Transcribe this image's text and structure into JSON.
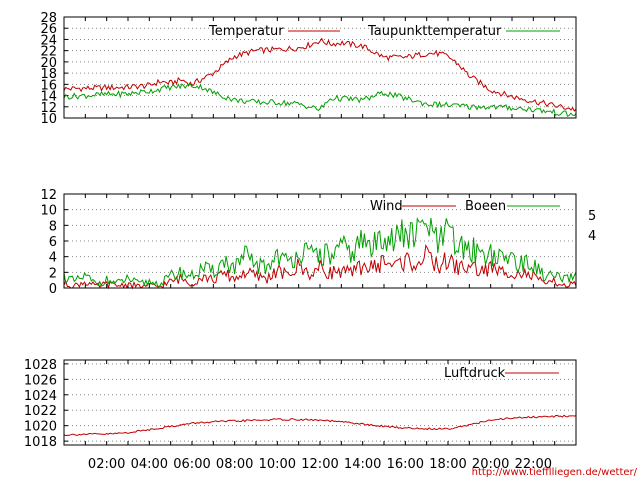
{
  "chart_data": [
    {
      "id": "temperature",
      "type": "line",
      "x_range": [
        0,
        24
      ],
      "ylim": [
        10,
        28
      ],
      "y_ticks": [
        "28",
        "26",
        "24",
        "22",
        "20",
        "18",
        "16",
        "14",
        "12",
        "10"
      ],
      "grid": true,
      "legend_position": "top-right",
      "series": [
        {
          "name": "Temperatur",
          "color": "#c00000",
          "x": [
            0,
            1,
            2,
            3,
            4,
            4.5,
            5,
            5.5,
            6,
            7,
            8,
            9,
            10,
            11,
            11.5,
            12,
            12.5,
            13,
            14,
            15,
            16,
            17,
            17.5,
            18,
            18.5,
            19,
            20,
            21,
            22,
            23,
            24
          ],
          "y": [
            15.2,
            15.3,
            15.4,
            15.5,
            15.8,
            16.5,
            16.2,
            16.8,
            16.0,
            18.0,
            21.0,
            22.0,
            22.2,
            22.5,
            23.0,
            23.8,
            23.2,
            23.4,
            22.8,
            20.8,
            20.8,
            21.5,
            21.5,
            21.0,
            19.5,
            17.5,
            15.0,
            13.8,
            13.0,
            12.2,
            11.5
          ]
        },
        {
          "name": "Taupunkttemperatur",
          "color": "#00a000",
          "x": [
            0,
            1,
            2,
            3,
            4,
            5,
            6,
            6.5,
            7,
            8,
            9,
            10,
            11,
            11.5,
            12,
            12.5,
            13,
            14,
            15,
            16,
            17,
            18,
            19,
            20,
            21,
            22,
            23,
            24
          ],
          "y": [
            13.8,
            14.0,
            14.2,
            14.3,
            14.8,
            15.5,
            15.8,
            15.5,
            14.5,
            13.2,
            12.8,
            12.8,
            12.5,
            12.0,
            11.5,
            13.5,
            13.5,
            13.2,
            14.5,
            13.5,
            12.5,
            12.3,
            12.0,
            12.0,
            11.8,
            11.5,
            11.0,
            10.5
          ]
        }
      ]
    },
    {
      "id": "wind",
      "type": "line",
      "x_range": [
        0,
        24
      ],
      "ylim": [
        0,
        12
      ],
      "y_ticks": [
        "12",
        "10",
        "8",
        "6",
        "4",
        "2",
        "0"
      ],
      "right_labels": [
        "5",
        "4"
      ],
      "grid": true,
      "legend_position": "top-right",
      "series": [
        {
          "name": "Wind",
          "color": "#c00000",
          "x": [
            0,
            0.5,
            1,
            1.5,
            2,
            2.5,
            3,
            3.5,
            4,
            4.5,
            5,
            5.5,
            6,
            6.5,
            7,
            7.5,
            8,
            8.5,
            9,
            9.5,
            10,
            10.5,
            11,
            11.5,
            12,
            12.5,
            13,
            13.5,
            14,
            14.5,
            15,
            15.5,
            16,
            16.5,
            17,
            17.5,
            18,
            18.5,
            19,
            19.5,
            20,
            20.5,
            21,
            21.5,
            22,
            22.5,
            23,
            23.5,
            24
          ],
          "y": [
            0.5,
            0.3,
            0.8,
            0.2,
            0.5,
            0.3,
            0.5,
            0.2,
            0.3,
            0.2,
            0.8,
            1.2,
            0.6,
            1.5,
            1.0,
            1.8,
            1.2,
            2.0,
            1.5,
            1.2,
            2.2,
            1.5,
            2.8,
            1.8,
            2.5,
            2.0,
            2.2,
            1.8,
            3.0,
            2.5,
            3.5,
            2.8,
            3.5,
            3.2,
            4.0,
            2.8,
            3.5,
            2.5,
            2.8,
            2.2,
            2.5,
            2.0,
            2.2,
            1.8,
            1.5,
            0.5,
            0.8,
            0.3,
            0.5
          ]
        },
        {
          "name": "Boeen",
          "color": "#00a000",
          "x": [
            0,
            0.5,
            1,
            1.5,
            2,
            2.5,
            3,
            3.5,
            4,
            4.5,
            5,
            5.5,
            6,
            6.5,
            7,
            7.5,
            8,
            8.5,
            9,
            9.5,
            10,
            10.5,
            11,
            11.5,
            12,
            12.5,
            13,
            13.5,
            14,
            14.5,
            15,
            15.5,
            16,
            16.5,
            17,
            17.5,
            18,
            18.5,
            19,
            19.5,
            20,
            20.5,
            21,
            21.5,
            22,
            22.5,
            23,
            23.5,
            24
          ],
          "y": [
            1.5,
            0.8,
            1.5,
            0.5,
            1.0,
            0.6,
            1.2,
            0.5,
            0.8,
            0.5,
            1.5,
            2.0,
            1.5,
            2.5,
            2.0,
            3.5,
            2.5,
            4.0,
            3.0,
            2.5,
            4.5,
            3.0,
            5.0,
            4.0,
            4.5,
            4.0,
            5.0,
            4.5,
            6.0,
            5.0,
            7.5,
            6.0,
            7.0,
            6.5,
            8.5,
            5.5,
            7.0,
            5.0,
            5.0,
            4.5,
            4.5,
            3.5,
            4.0,
            3.0,
            3.0,
            1.5,
            1.5,
            1.0,
            1.5
          ]
        }
      ]
    },
    {
      "id": "pressure",
      "type": "line",
      "x_range": [
        0,
        24
      ],
      "ylim": [
        1017.5,
        1028.5
      ],
      "y_ticks": [
        "1028",
        "1026",
        "1024",
        "1022",
        "1020",
        "1018"
      ],
      "grid": true,
      "legend_position": "top-right",
      "series": [
        {
          "name": "Luftdruck",
          "color": "#c00000",
          "x": [
            0,
            1,
            2,
            3,
            4,
            5,
            6,
            7,
            8,
            9,
            10,
            11,
            12,
            13,
            14,
            15,
            16,
            17,
            18,
            19,
            20,
            21,
            22,
            23,
            24
          ],
          "y": [
            1018.8,
            1018.9,
            1018.9,
            1019.1,
            1019.5,
            1019.9,
            1020.3,
            1020.5,
            1020.6,
            1020.7,
            1020.8,
            1020.8,
            1020.7,
            1020.5,
            1020.2,
            1019.9,
            1019.7,
            1019.6,
            1019.6,
            1020.1,
            1020.7,
            1021.0,
            1021.1,
            1021.2,
            1021.3
          ]
        }
      ]
    }
  ],
  "x_axis": {
    "ticks": [
      "02:00",
      "04:00",
      "06:00",
      "08:00",
      "10:00",
      "12:00",
      "14:00",
      "16:00",
      "18:00",
      "20:00",
      "22:00"
    ]
  },
  "credit": "http://www.tiefflliegen.de/wetter/"
}
